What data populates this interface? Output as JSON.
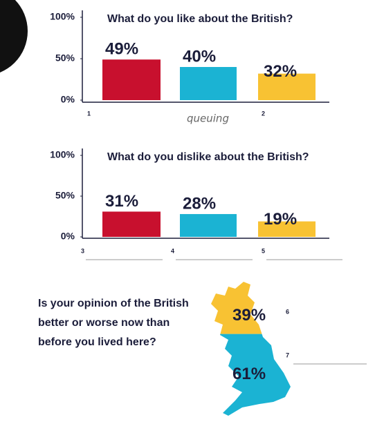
{
  "chart_data": [
    {
      "type": "bar",
      "title": "What do you like about the British?",
      "categories": [
        null,
        null,
        null
      ],
      "values": [
        49,
        40,
        32
      ],
      "value_labels": [
        "49%",
        "40%",
        "32%"
      ],
      "colors": [
        "#c8102e",
        "#1bb3d3",
        "#f8c233"
      ],
      "ylim": [
        0,
        100
      ],
      "yticks": [
        {
          "value": 0,
          "label": "0%"
        },
        {
          "value": 50,
          "label": "50%"
        },
        {
          "value": 100,
          "label": "100%"
        }
      ]
    },
    {
      "type": "bar",
      "title": "What do you dislike about the British?",
      "categories": [
        null,
        null,
        null
      ],
      "values": [
        31,
        28,
        19
      ],
      "value_labels": [
        "31%",
        "28%",
        "19%"
      ],
      "colors": [
        "#c8102e",
        "#1bb3d3",
        "#f8c233"
      ],
      "ylim": [
        0,
        100
      ],
      "yticks": [
        {
          "value": 0,
          "label": "0%"
        },
        {
          "value": 50,
          "label": "50%"
        },
        {
          "value": 100,
          "label": "100%"
        }
      ]
    },
    {
      "type": "map",
      "title": [
        "Is your opinion of the British",
        "better or worse now than",
        "before you lived here?"
      ],
      "values": [
        39,
        61
      ],
      "value_labels": [
        "39%",
        "61%"
      ],
      "colors": [
        "#f8c233",
        "#1bb3d3"
      ]
    }
  ],
  "worksheet": {
    "numbers": [
      "1",
      "2",
      "3",
      "4",
      "5",
      "6",
      "7"
    ],
    "example_answer": "queuing"
  }
}
